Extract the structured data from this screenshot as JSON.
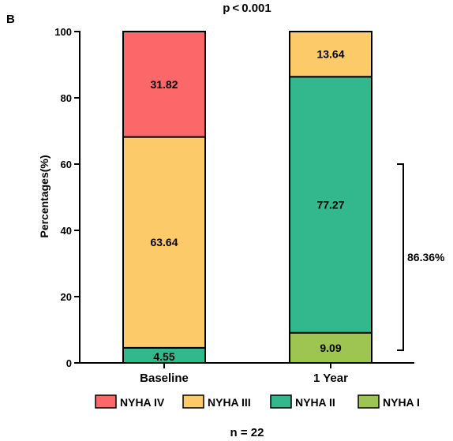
{
  "panel_label": "B",
  "chart_data": {
    "type": "bar",
    "stacked": true,
    "title": "p < 0.001",
    "ylabel": "Percentages(%)",
    "xlabel": "",
    "categories": [
      "Baseline",
      "1 Year"
    ],
    "ylim": [
      0,
      100
    ],
    "yticks": [
      "0",
      "20",
      "40",
      "60",
      "80",
      "100"
    ],
    "series": [
      {
        "name": "NYHA I",
        "color": "#9ec551",
        "values": [
          0,
          9.09
        ],
        "labels": [
          "",
          "9.09"
        ]
      },
      {
        "name": "NYHA II",
        "color": "#33b88d",
        "values": [
          4.55,
          77.27
        ],
        "labels": [
          "4.55",
          "77.27"
        ]
      },
      {
        "name": "NYHA III",
        "color": "#fdca69",
        "values": [
          63.64,
          13.64
        ],
        "labels": [
          "63.64",
          "13.64"
        ]
      },
      {
        "name": "NYHA IV",
        "color": "#fc6769",
        "values": [
          31.82,
          0
        ],
        "labels": [
          "31.82",
          ""
        ]
      }
    ],
    "legend_order": [
      "NYHA IV",
      "NYHA III",
      "NYHA II",
      "NYHA I"
    ],
    "legend_position": "bottom",
    "bracket": {
      "category": "1 Year",
      "from": 0,
      "to": 60,
      "label": "86.36%"
    },
    "sample_size": "n = 22"
  }
}
